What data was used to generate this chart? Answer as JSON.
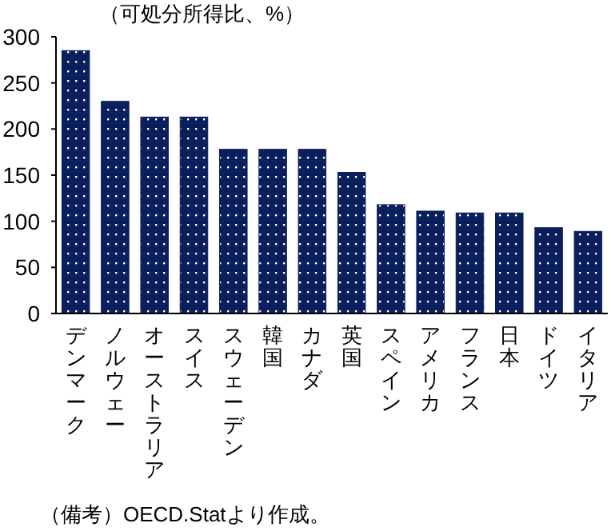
{
  "chart_data": {
    "type": "bar",
    "ylabel": "（可処分所得比、%）",
    "categories": [
      "デンマーク",
      "ノルウェー",
      "オーストラリア",
      "スイス",
      "スウェーデン",
      "韓国",
      "カナダ",
      "英国",
      "スペイン",
      "アメリカ",
      "フランス",
      "日本",
      "ドイツ",
      "イタリア"
    ],
    "values": [
      285,
      230,
      213,
      213,
      178,
      178,
      178,
      153,
      118,
      111,
      109,
      109,
      93,
      89
    ],
    "color": "#0b1f5c",
    "ylim": [
      0,
      300
    ],
    "yticks": [
      0,
      50,
      100,
      150,
      200,
      250,
      300
    ],
    "annotations": [
      "（備考）OECD.Statより作成。"
    ]
  }
}
